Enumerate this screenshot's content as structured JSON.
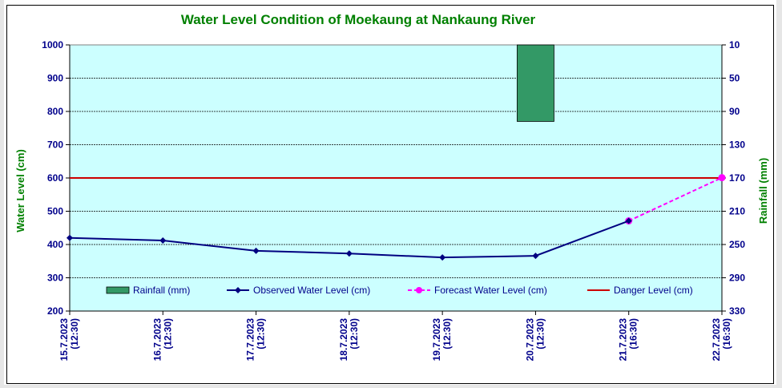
{
  "chart_data": {
    "type": "line",
    "title": "Water Level Condition of Moekaung at Nankaung River",
    "ylabel": "Water Level (cm)",
    "y2label": "Rainfall (mm)",
    "ylim": [
      200,
      1000
    ],
    "y2lim": [
      10,
      330
    ],
    "y2_inverted": true,
    "yticks": [
      "1000",
      "900",
      "800",
      "700",
      "600",
      "500",
      "400",
      "300",
      "200"
    ],
    "y2ticks": [
      "10",
      "50",
      "90",
      "130",
      "170",
      "210",
      "250",
      "290",
      "330"
    ],
    "categories": [
      "15.7.2023 (12:30)",
      "16.7.2023 (12:30)",
      "17.7.2023 (12:30)",
      "18.7.2023 (12:30)",
      "19.7.2023 (12:30)",
      "20.7.2023 (12:30)",
      "21.7.2023 (16:30)",
      "22.7.2023 (16:30)"
    ],
    "x_labels": [
      [
        "15.7.2023",
        "(12:30)"
      ],
      [
        "16.7.2023",
        "(12:30)"
      ],
      [
        "17.7.2023",
        "(12:30)"
      ],
      [
        "18.7.2023",
        "(12:30)"
      ],
      [
        "19.7.2023",
        "(12:30)"
      ],
      [
        "20.7.2023",
        "(12:30)"
      ],
      [
        "21.7.2023",
        "(16:30)"
      ],
      [
        "22.7.2023",
        "(16:30)"
      ]
    ],
    "series": [
      {
        "name": "Rainfall (mm)",
        "kind": "bar",
        "axis": "right",
        "color": "#339966",
        "values": [
          0,
          0,
          0,
          0,
          0,
          92,
          0,
          0
        ]
      },
      {
        "name": "Observed Water Level (cm)",
        "kind": "line",
        "color": "#000080",
        "values": [
          420,
          412,
          381,
          373,
          361,
          366,
          471,
          null
        ]
      },
      {
        "name": "Forecast Water Level (cm)",
        "kind": "line-dashed",
        "color": "#ff00ff",
        "values": [
          null,
          null,
          null,
          null,
          null,
          null,
          471,
          601
        ]
      },
      {
        "name": "Danger Level (cm)",
        "kind": "hline",
        "color": "#cc0000",
        "value": 600
      }
    ],
    "legend": "inside-bottom",
    "grid": true,
    "plot_background": "#ccffff"
  }
}
